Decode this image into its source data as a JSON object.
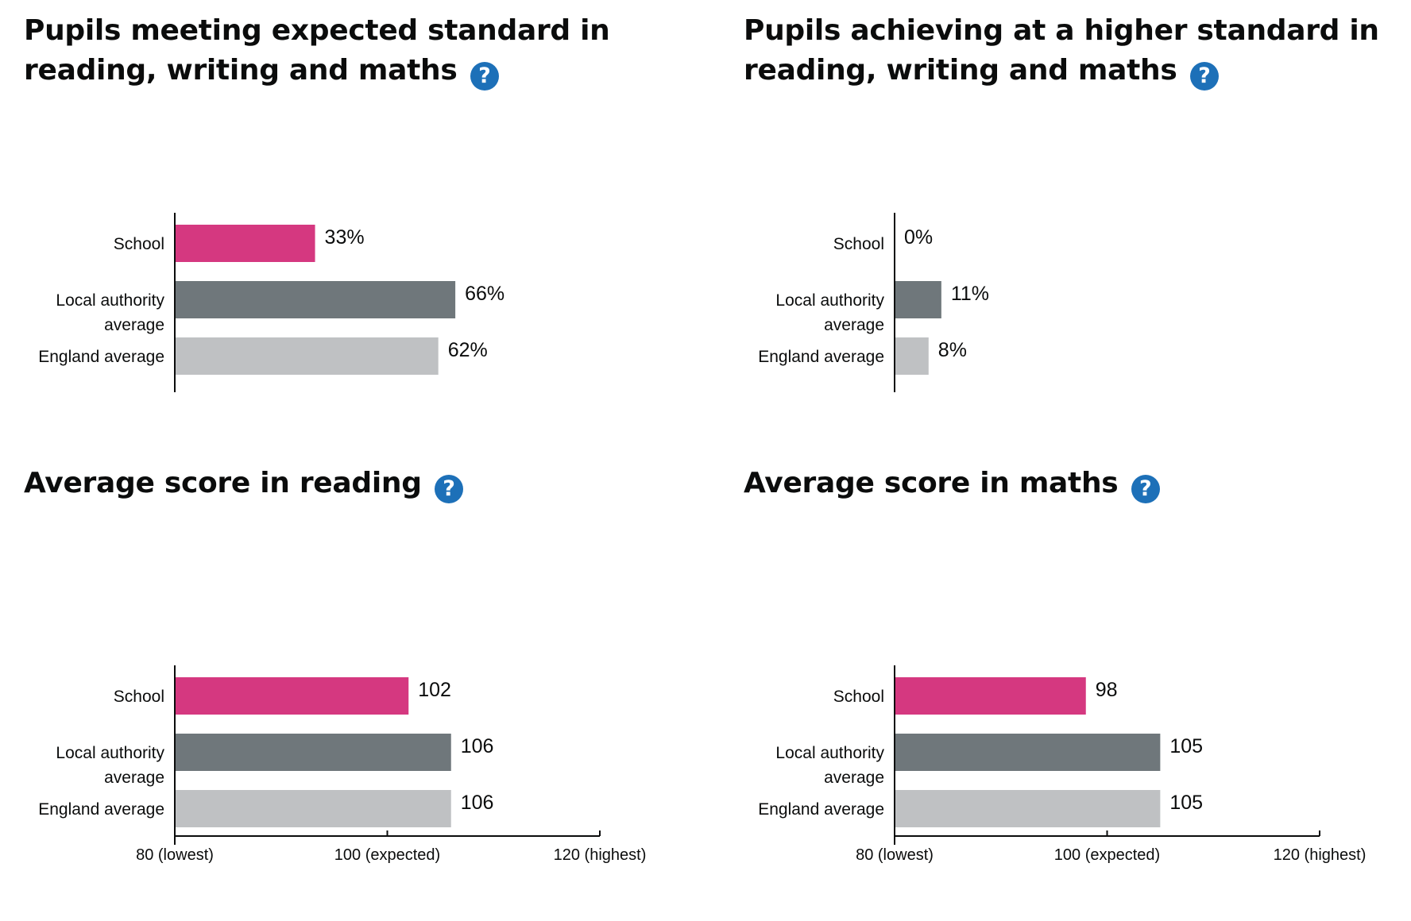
{
  "colors": {
    "school": "#d53880",
    "local_authority": "#6f777b",
    "england": "#bfc1c3",
    "help_icon": "#1d70b8"
  },
  "help_icon_glyph": "?",
  "panels": [
    {
      "title": "Pupils meeting expected standard in reading, writing and maths"
    },
    {
      "title": "Pupils achieving at a higher standard in reading, writing and maths"
    },
    {
      "title": "Average score in reading"
    },
    {
      "title": "Average score in maths"
    }
  ],
  "chart_data": [
    {
      "type": "bar",
      "orientation": "horizontal",
      "title": "Pupils meeting expected standard in reading, writing and maths",
      "categories": [
        "School",
        "Local authority average",
        "England average"
      ],
      "category_lines": [
        [
          "School"
        ],
        [
          "Local authority",
          "average"
        ],
        [
          "England average"
        ]
      ],
      "values": [
        33,
        66,
        62
      ],
      "value_labels": [
        "33%",
        "66%",
        "62%"
      ],
      "xlim": [
        0,
        100
      ],
      "grid": false,
      "legend": "none"
    },
    {
      "type": "bar",
      "orientation": "horizontal",
      "title": "Pupils achieving at a higher standard in reading, writing and maths",
      "categories": [
        "School",
        "Local authority average",
        "England average"
      ],
      "category_lines": [
        [
          "School"
        ],
        [
          "Local authority",
          "average"
        ],
        [
          "England average"
        ]
      ],
      "values": [
        0,
        11,
        8
      ],
      "value_labels": [
        "0%",
        "11%",
        "8%"
      ],
      "xlim": [
        0,
        100
      ],
      "grid": false,
      "legend": "none"
    },
    {
      "type": "bar",
      "orientation": "horizontal",
      "title": "Average score in reading",
      "categories": [
        "School",
        "Local authority average",
        "England average"
      ],
      "category_lines": [
        [
          "School"
        ],
        [
          "Local authority",
          "average"
        ],
        [
          "England average"
        ]
      ],
      "values": [
        102,
        106,
        106
      ],
      "value_labels": [
        "102",
        "106",
        "106"
      ],
      "xlim": [
        80,
        120
      ],
      "xticks": [
        80,
        100,
        120
      ],
      "xtick_labels": [
        "80 (lowest)",
        "100 (expected)",
        "120 (highest)"
      ],
      "grid": false,
      "legend": "none"
    },
    {
      "type": "bar",
      "orientation": "horizontal",
      "title": "Average score in maths",
      "categories": [
        "School",
        "Local authority average",
        "England average"
      ],
      "category_lines": [
        [
          "School"
        ],
        [
          "Local authority",
          "average"
        ],
        [
          "England average"
        ]
      ],
      "values": [
        98,
        105,
        105
      ],
      "value_labels": [
        "98",
        "105",
        "105"
      ],
      "xlim": [
        80,
        120
      ],
      "xticks": [
        80,
        100,
        120
      ],
      "xtick_labels": [
        "80 (lowest)",
        "100 (expected)",
        "120 (highest)"
      ],
      "grid": false,
      "legend": "none"
    }
  ]
}
